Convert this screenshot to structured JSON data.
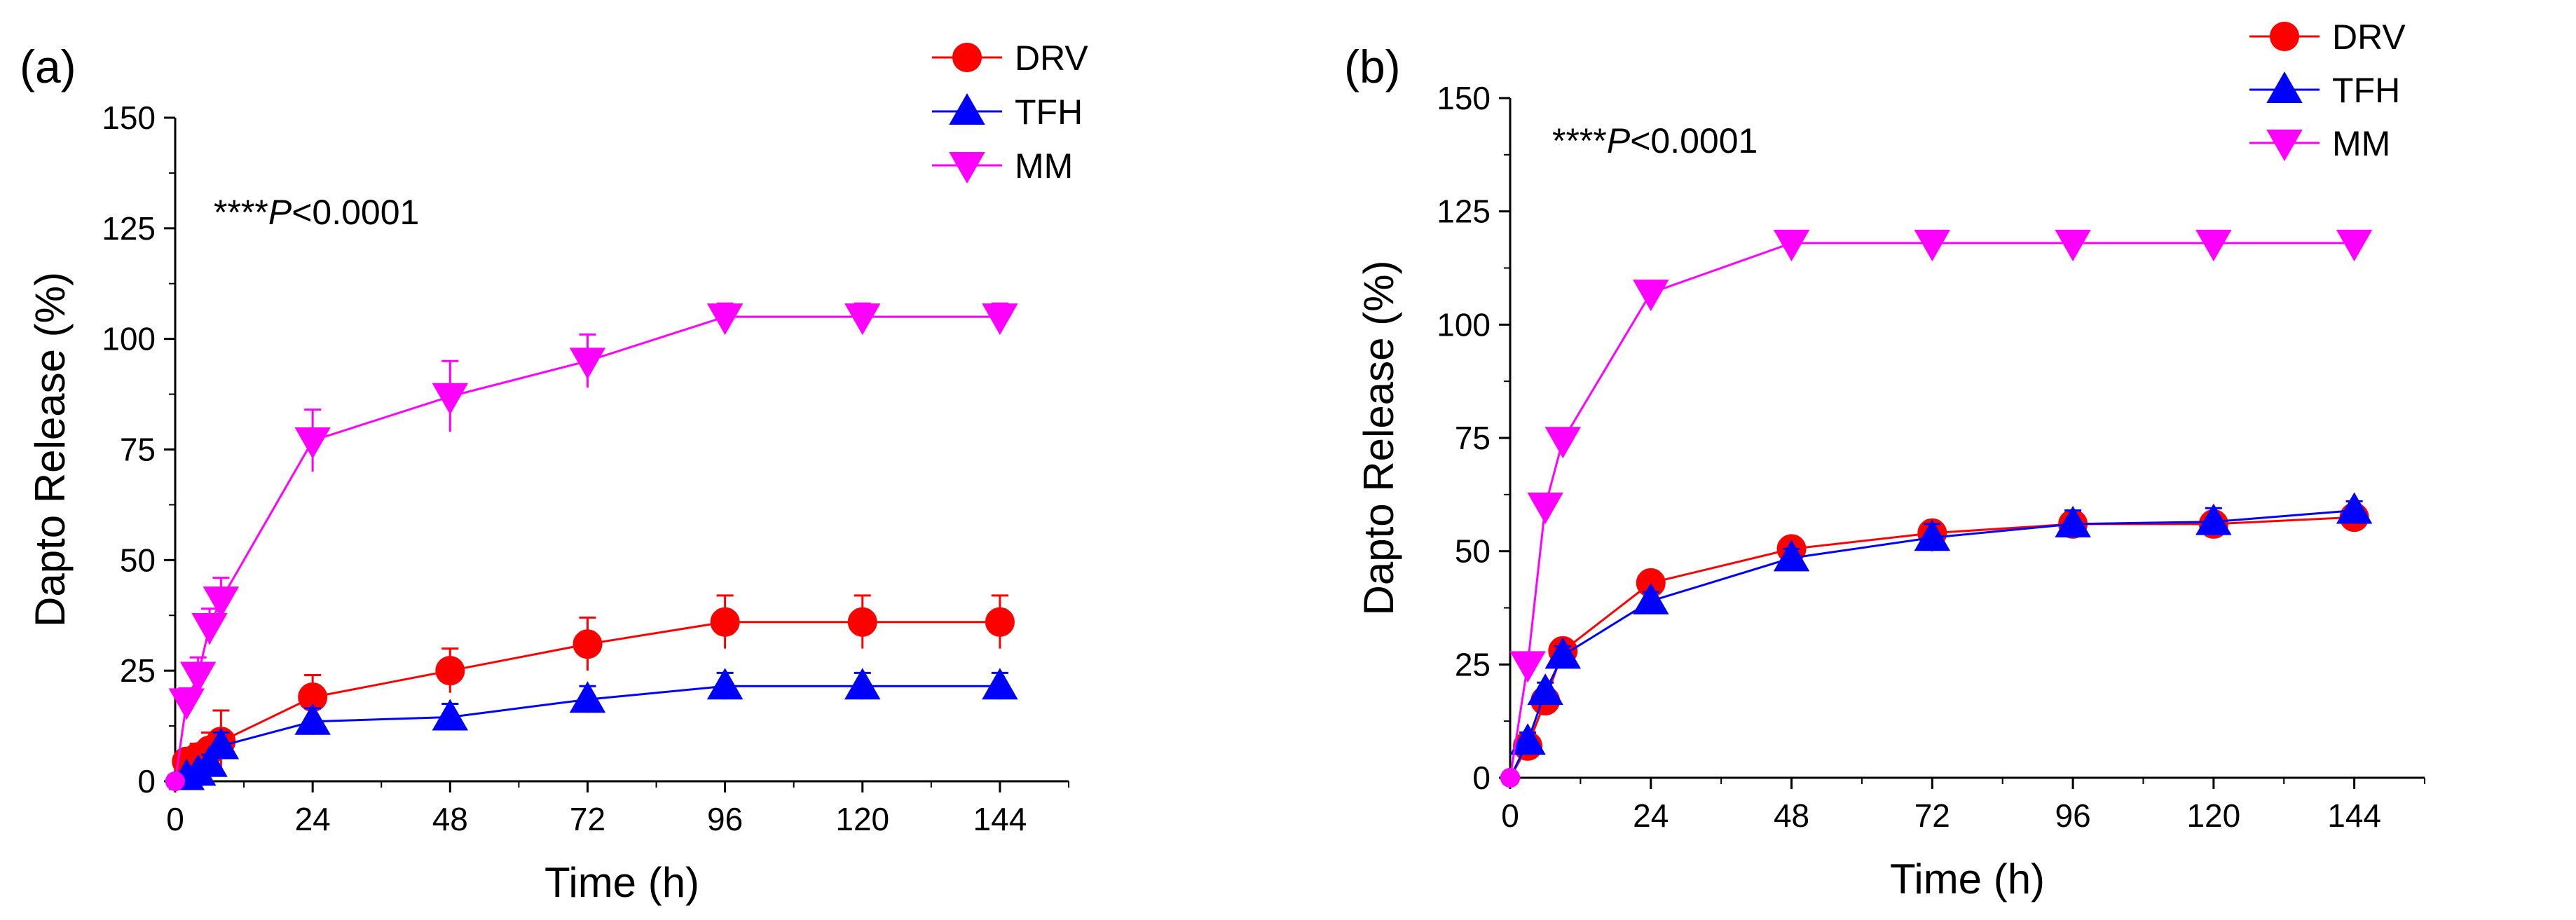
{
  "chart_data": [
    {
      "type": "line",
      "panel_label": "(a)",
      "title": "",
      "xlabel": "Time (h)",
      "ylabel": "Dapto Release (%)",
      "xlim": [
        0,
        156
      ],
      "ylim": [
        0,
        150
      ],
      "xticks": [
        "0",
        "24",
        "48",
        "72",
        "96",
        "120",
        "144"
      ],
      "yticks": [
        "0",
        "25",
        "50",
        "75",
        "100",
        "125",
        "150"
      ],
      "annotation": {
        "prefix": "****",
        "p": "P",
        "rest": "<0.0001"
      },
      "legend_position": "top-right outside",
      "series": [
        {
          "name": "DRV",
          "color": "#ff0000",
          "marker": "circle",
          "x": [
            0,
            2,
            4,
            6,
            8,
            24,
            48,
            72,
            96,
            120,
            144
          ],
          "y": [
            0,
            4.5,
            5.5,
            7,
            9,
            19,
            25,
            31,
            36,
            36,
            36
          ],
          "err": [
            0,
            2,
            3,
            4,
            7,
            5,
            5,
            6,
            6,
            6,
            6
          ]
        },
        {
          "name": "TFH",
          "color": "#0000ff",
          "marker": "triangle-up",
          "x": [
            0,
            2,
            4,
            6,
            8,
            24,
            48,
            72,
            96,
            120,
            144
          ],
          "y": [
            0,
            1,
            2,
            4,
            8,
            13.5,
            14.5,
            18.5,
            21.5,
            21.5,
            21.5
          ],
          "err": [
            0,
            1,
            1,
            2,
            3,
            3,
            3,
            3,
            3,
            3,
            3
          ]
        },
        {
          "name": "MM",
          "color": "#ff00ff",
          "marker": "triangle-down",
          "x": [
            0,
            2,
            4,
            6,
            8,
            24,
            48,
            72,
            96,
            120,
            144
          ],
          "y": [
            0,
            18,
            24,
            35,
            41,
            77,
            87,
            95,
            105,
            105,
            105
          ],
          "err": [
            0,
            3,
            4,
            4,
            5,
            7,
            8,
            6,
            3,
            3,
            3
          ]
        }
      ]
    },
    {
      "type": "line",
      "panel_label": "(b)",
      "title": "",
      "xlabel": "Time (h)",
      "ylabel": "Dapto Release (%)",
      "xlim": [
        0,
        156
      ],
      "ylim": [
        0,
        150
      ],
      "xticks": [
        "0",
        "24",
        "48",
        "72",
        "96",
        "120",
        "144"
      ],
      "yticks": [
        "0",
        "25",
        "50",
        "75",
        "100",
        "125",
        "150"
      ],
      "annotation": {
        "prefix": "****",
        "p": "P",
        "rest": "<0.0001"
      },
      "legend_position": "top-right outside",
      "series": [
        {
          "name": "DRV",
          "color": "#ff0000",
          "marker": "circle",
          "x": [
            0,
            3,
            6,
            9,
            24,
            48,
            72,
            96,
            120,
            144
          ],
          "y": [
            0,
            7,
            17,
            28,
            43,
            50.5,
            54,
            56,
            56,
            57.5
          ],
          "err": [
            0,
            1,
            1,
            1,
            1,
            1,
            1,
            1,
            1,
            1
          ]
        },
        {
          "name": "TFH",
          "color": "#0000ff",
          "marker": "triangle-up",
          "x": [
            0,
            3,
            6,
            9,
            24,
            48,
            72,
            96,
            120,
            144
          ],
          "y": [
            0,
            8,
            19,
            27,
            39,
            48.5,
            53,
            56,
            56.5,
            59
          ],
          "err": [
            0,
            2,
            2,
            2,
            2,
            2,
            3,
            3,
            3,
            2
          ]
        },
        {
          "name": "MM",
          "color": "#ff00ff",
          "marker": "triangle-down",
          "x": [
            0,
            3,
            6,
            9,
            24,
            48,
            72,
            96,
            120,
            144
          ],
          "y": [
            0,
            25,
            60,
            74.5,
            107,
            118,
            118,
            118,
            118,
            118
          ],
          "err": [
            0,
            1,
            1,
            1,
            2,
            2,
            1,
            1,
            1,
            1
          ]
        }
      ]
    }
  ]
}
